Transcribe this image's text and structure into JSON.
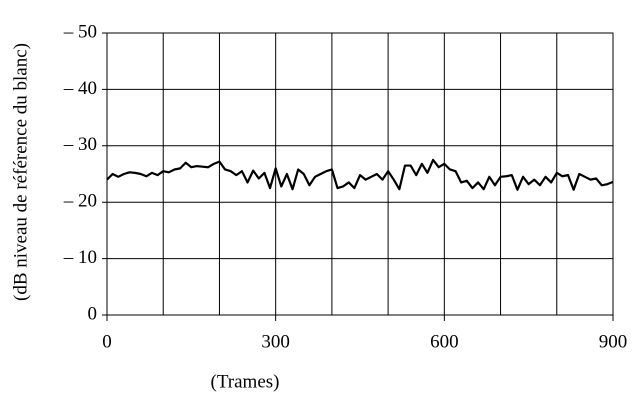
{
  "chart_data": {
    "type": "line",
    "x_label": "(Trames)",
    "y_label": "(dB niveau de référence du blanc)",
    "x": [
      0,
      10,
      20,
      30,
      40,
      50,
      60,
      70,
      80,
      90,
      100,
      110,
      120,
      130,
      140,
      150,
      160,
      170,
      180,
      190,
      200,
      210,
      220,
      230,
      240,
      250,
      260,
      270,
      280,
      290,
      300,
      310,
      320,
      330,
      340,
      350,
      360,
      370,
      380,
      390,
      400,
      410,
      420,
      430,
      440,
      450,
      460,
      470,
      480,
      490,
      500,
      510,
      520,
      530,
      540,
      550,
      560,
      570,
      580,
      590,
      600,
      610,
      620,
      630,
      640,
      650,
      660,
      670,
      680,
      690,
      700,
      710,
      720,
      730,
      740,
      750,
      760,
      770,
      780,
      790,
      800,
      810,
      820,
      830,
      840,
      850,
      860,
      870,
      880,
      890,
      900
    ],
    "series": [
      {
        "color": "#000000",
        "values": [
          -24,
          -25,
          -24.5,
          -25,
          -25.3,
          -25.2,
          -25,
          -24.6,
          -25.2,
          -24.8,
          -25.5,
          -25.3,
          -25.8,
          -26,
          -27,
          -26.2,
          -26.4,
          -26.3,
          -26.2,
          -26.8,
          -27.2,
          -25.8,
          -25.5,
          -24.8,
          -25.5,
          -23.5,
          -25.6,
          -24.2,
          -25.2,
          -22.5,
          -26,
          -22.8,
          -25,
          -22.3,
          -25.8,
          -25,
          -23,
          -24.5,
          -25,
          -25.5,
          -25.8,
          -22.5,
          -22.8,
          -23.5,
          -22.5,
          -24.8,
          -24,
          -24.5,
          -25,
          -24,
          -25.5,
          -24,
          -22.3,
          -26.5,
          -26.5,
          -24.8,
          -26.8,
          -25.2,
          -27.5,
          -26.2,
          -26.8,
          -25.8,
          -25.5,
          -23.5,
          -23.8,
          -22.5,
          -23.5,
          -22.3,
          -24.5,
          -23,
          -24.5,
          -24.6,
          -24.8,
          -22.2,
          -24.5,
          -23.2,
          -24,
          -23,
          -24.5,
          -23.5,
          -25.2,
          -24.6,
          -24.8,
          -22.2,
          -25,
          -24.5,
          -24,
          -24.2,
          -23,
          -23.2,
          -23.6
        ]
      }
    ],
    "xlim": [
      0,
      900
    ],
    "xticks": [
      0,
      300,
      600,
      900
    ],
    "xgrid": [
      100,
      200,
      300,
      400,
      500,
      600,
      700,
      800
    ],
    "ylim": [
      0,
      -50
    ],
    "yticks": [
      0,
      {
        "value": -10,
        "label": "– 10"
      },
      {
        "value": -20,
        "label": "– 20"
      },
      {
        "value": -30,
        "label": "– 30"
      },
      {
        "value": -40,
        "label": "– 40"
      },
      {
        "value": -50,
        "label": "– 50"
      }
    ],
    "grid": true
  }
}
